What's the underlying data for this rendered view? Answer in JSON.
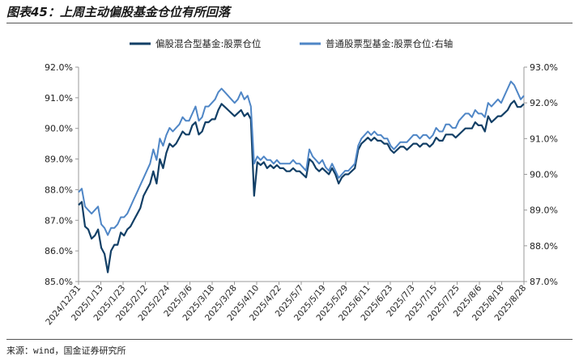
{
  "title": "图表45：上周主动偏股基金仓位有所回落",
  "source": "来源：wind，国金证券研究所",
  "chart_data": {
    "type": "line",
    "legend_position": "top",
    "grid": false,
    "x_tick_labels": [
      "2024/12/31",
      "2025/1/13",
      "2025/1/23",
      "2025/2/12",
      "2025/2/24",
      "2025/3/6",
      "2025/3/18",
      "2025/3/28",
      "2025/4/10",
      "2025/4/22",
      "2025/5/7",
      "2025/5/19",
      "2025/5/29",
      "2025/6/11",
      "2025/6/23",
      "2025/7/3",
      "2025/7/15",
      "2025/7/25",
      "2025/8/6",
      "2025/8/18",
      "2025/8/28"
    ],
    "y_left": {
      "min": 85,
      "max": 92,
      "ticks": [
        "85.0%",
        "86.0%",
        "87.0%",
        "88.0%",
        "89.0%",
        "90.0%",
        "91.0%",
        "92.0%"
      ]
    },
    "y_right": {
      "min": 87,
      "max": 93,
      "ticks": [
        "87.0%",
        "88.0%",
        "89.0%",
        "90.0%",
        "91.0%",
        "92.0%",
        "93.0%"
      ]
    },
    "series": [
      {
        "name": "偏股混合型基金:股票仓位",
        "axis": "left",
        "color": "#123f66",
        "points": [
          [
            0,
            87.5
          ],
          [
            1,
            87.6
          ],
          [
            2,
            86.8
          ],
          [
            3,
            86.7
          ],
          [
            4,
            86.4
          ],
          [
            5,
            86.5
          ],
          [
            6,
            86.7
          ],
          [
            7,
            86.1
          ],
          [
            8,
            85.9
          ],
          [
            9,
            85.3
          ],
          [
            10,
            86.0
          ],
          [
            11,
            86.2
          ],
          [
            12,
            86.2
          ],
          [
            13,
            86.6
          ],
          [
            14,
            86.5
          ],
          [
            15,
            86.7
          ],
          [
            16,
            86.8
          ],
          [
            17,
            87.0
          ],
          [
            18,
            87.2
          ],
          [
            19,
            87.4
          ],
          [
            20,
            87.8
          ],
          [
            21,
            88.0
          ],
          [
            22,
            88.2
          ],
          [
            23,
            88.6
          ],
          [
            24,
            88.2
          ],
          [
            25,
            89.0
          ],
          [
            26,
            88.7
          ],
          [
            27,
            89.2
          ],
          [
            28,
            89.5
          ],
          [
            29,
            89.4
          ],
          [
            30,
            89.5
          ],
          [
            31,
            89.7
          ],
          [
            32,
            89.9
          ],
          [
            33,
            89.8
          ],
          [
            34,
            89.8
          ],
          [
            35,
            90.1
          ],
          [
            36,
            90.2
          ],
          [
            37,
            89.8
          ],
          [
            38,
            89.9
          ],
          [
            39,
            90.2
          ],
          [
            40,
            90.2
          ],
          [
            41,
            90.3
          ],
          [
            42,
            90.3
          ],
          [
            43,
            90.6
          ],
          [
            44,
            90.8
          ],
          [
            45,
            90.7
          ],
          [
            46,
            90.6
          ],
          [
            47,
            90.5
          ],
          [
            48,
            90.4
          ],
          [
            49,
            90.5
          ],
          [
            50,
            90.6
          ],
          [
            51,
            90.4
          ],
          [
            52,
            90.5
          ],
          [
            53,
            90.3
          ],
          [
            54,
            87.8
          ],
          [
            55,
            88.9
          ],
          [
            56,
            88.8
          ],
          [
            57,
            88.9
          ],
          [
            58,
            88.7
          ],
          [
            59,
            88.8
          ],
          [
            60,
            88.7
          ],
          [
            61,
            88.8
          ],
          [
            62,
            88.7
          ],
          [
            63,
            88.7
          ],
          [
            64,
            88.6
          ],
          [
            65,
            88.6
          ],
          [
            66,
            88.7
          ],
          [
            67,
            88.6
          ],
          [
            68,
            88.6
          ],
          [
            69,
            88.5
          ],
          [
            70,
            88.4
          ],
          [
            71,
            89.0
          ],
          [
            72,
            88.9
          ],
          [
            73,
            88.7
          ],
          [
            74,
            88.6
          ],
          [
            75,
            88.7
          ],
          [
            76,
            88.6
          ],
          [
            77,
            88.5
          ],
          [
            78,
            88.7
          ],
          [
            79,
            88.5
          ],
          [
            80,
            88.2
          ],
          [
            81,
            88.4
          ],
          [
            82,
            88.5
          ],
          [
            83,
            88.5
          ],
          [
            84,
            88.6
          ],
          [
            85,
            88.7
          ],
          [
            86,
            89.3
          ],
          [
            87,
            89.5
          ],
          [
            88,
            89.6
          ],
          [
            89,
            89.7
          ],
          [
            90,
            89.6
          ],
          [
            91,
            89.7
          ],
          [
            92,
            89.6
          ],
          [
            93,
            89.6
          ],
          [
            94,
            89.5
          ],
          [
            95,
            89.5
          ],
          [
            96,
            89.3
          ],
          [
            97,
            89.2
          ],
          [
            98,
            89.3
          ],
          [
            99,
            89.4
          ],
          [
            100,
            89.4
          ],
          [
            101,
            89.3
          ],
          [
            102,
            89.4
          ],
          [
            103,
            89.5
          ],
          [
            104,
            89.5
          ],
          [
            105,
            89.4
          ],
          [
            106,
            89.5
          ],
          [
            107,
            89.5
          ],
          [
            108,
            89.4
          ],
          [
            109,
            89.5
          ],
          [
            110,
            89.7
          ],
          [
            111,
            89.6
          ],
          [
            112,
            89.6
          ],
          [
            113,
            89.8
          ],
          [
            114,
            89.8
          ],
          [
            115,
            89.8
          ],
          [
            116,
            89.7
          ],
          [
            117,
            89.8
          ],
          [
            118,
            89.9
          ],
          [
            119,
            90.0
          ],
          [
            120,
            90.0
          ],
          [
            121,
            90.0
          ],
          [
            122,
            90.2
          ],
          [
            123,
            90.1
          ],
          [
            124,
            90.1
          ],
          [
            125,
            89.9
          ],
          [
            126,
            90.4
          ],
          [
            127,
            90.2
          ],
          [
            128,
            90.3
          ],
          [
            129,
            90.4
          ],
          [
            130,
            90.4
          ],
          [
            131,
            90.5
          ],
          [
            132,
            90.6
          ],
          [
            133,
            90.8
          ],
          [
            134,
            90.9
          ],
          [
            135,
            90.7
          ],
          [
            136,
            90.7
          ],
          [
            137,
            90.8
          ]
        ]
      },
      {
        "name": "普通股票型基金:股票仓位:右轴",
        "axis": "right",
        "color": "#4f86c6",
        "points": [
          [
            0,
            89.5
          ],
          [
            1,
            89.6
          ],
          [
            2,
            89.1
          ],
          [
            3,
            89.0
          ],
          [
            4,
            88.9
          ],
          [
            5,
            89.0
          ],
          [
            6,
            89.1
          ],
          [
            7,
            88.6
          ],
          [
            8,
            88.5
          ],
          [
            9,
            88.3
          ],
          [
            10,
            88.5
          ],
          [
            11,
            88.5
          ],
          [
            12,
            88.6
          ],
          [
            13,
            88.8
          ],
          [
            14,
            88.8
          ],
          [
            15,
            88.9
          ],
          [
            16,
            89.1
          ],
          [
            17,
            89.3
          ],
          [
            18,
            89.5
          ],
          [
            19,
            89.7
          ],
          [
            20,
            89.9
          ],
          [
            21,
            90.1
          ],
          [
            22,
            90.3
          ],
          [
            23,
            90.7
          ],
          [
            24,
            90.4
          ],
          [
            25,
            91.0
          ],
          [
            26,
            90.8
          ],
          [
            27,
            91.1
          ],
          [
            28,
            91.3
          ],
          [
            29,
            91.2
          ],
          [
            30,
            91.3
          ],
          [
            31,
            91.4
          ],
          [
            32,
            91.6
          ],
          [
            33,
            91.5
          ],
          [
            34,
            91.5
          ],
          [
            35,
            91.7
          ],
          [
            36,
            91.9
          ],
          [
            37,
            91.5
          ],
          [
            38,
            91.6
          ],
          [
            39,
            91.9
          ],
          [
            40,
            91.9
          ],
          [
            41,
            92.0
          ],
          [
            42,
            92.1
          ],
          [
            43,
            92.3
          ],
          [
            44,
            92.4
          ],
          [
            45,
            92.3
          ],
          [
            46,
            92.2
          ],
          [
            47,
            92.1
          ],
          [
            48,
            92.0
          ],
          [
            49,
            92.1
          ],
          [
            50,
            92.3
          ],
          [
            51,
            92.1
          ],
          [
            52,
            92.2
          ],
          [
            53,
            91.9
          ],
          [
            54,
            90.3
          ],
          [
            55,
            90.5
          ],
          [
            56,
            90.4
          ],
          [
            57,
            90.5
          ],
          [
            58,
            90.4
          ],
          [
            59,
            90.4
          ],
          [
            60,
            90.3
          ],
          [
            61,
            90.4
          ],
          [
            62,
            90.3
          ],
          [
            63,
            90.3
          ],
          [
            64,
            90.3
          ],
          [
            65,
            90.3
          ],
          [
            66,
            90.4
          ],
          [
            67,
            90.3
          ],
          [
            68,
            90.3
          ],
          [
            69,
            90.2
          ],
          [
            70,
            90.1
          ],
          [
            71,
            90.7
          ],
          [
            72,
            90.5
          ],
          [
            73,
            90.4
          ],
          [
            74,
            90.3
          ],
          [
            75,
            90.4
          ],
          [
            76,
            90.2
          ],
          [
            77,
            90.1
          ],
          [
            78,
            90.3
          ],
          [
            79,
            90.1
          ],
          [
            80,
            89.9
          ],
          [
            81,
            90.0
          ],
          [
            82,
            90.1
          ],
          [
            83,
            90.1
          ],
          [
            84,
            90.2
          ],
          [
            85,
            90.3
          ],
          [
            86,
            90.8
          ],
          [
            87,
            91.0
          ],
          [
            88,
            91.1
          ],
          [
            89,
            91.2
          ],
          [
            90,
            91.1
          ],
          [
            91,
            91.2
          ],
          [
            92,
            91.1
          ],
          [
            93,
            91.1
          ],
          [
            94,
            91.0
          ],
          [
            95,
            91.0
          ],
          [
            96,
            90.8
          ],
          [
            97,
            90.7
          ],
          [
            98,
            90.8
          ],
          [
            99,
            90.9
          ],
          [
            100,
            90.9
          ],
          [
            101,
            90.9
          ],
          [
            102,
            91.0
          ],
          [
            103,
            91.1
          ],
          [
            104,
            91.1
          ],
          [
            105,
            91.0
          ],
          [
            106,
            91.1
          ],
          [
            107,
            91.1
          ],
          [
            108,
            91.0
          ],
          [
            109,
            91.1
          ],
          [
            110,
            91.3
          ],
          [
            111,
            91.2
          ],
          [
            112,
            91.2
          ],
          [
            113,
            91.4
          ],
          [
            114,
            91.4
          ],
          [
            115,
            91.3
          ],
          [
            116,
            91.3
          ],
          [
            117,
            91.5
          ],
          [
            118,
            91.6
          ],
          [
            119,
            91.7
          ],
          [
            120,
            91.7
          ],
          [
            121,
            91.6
          ],
          [
            122,
            91.8
          ],
          [
            123,
            91.7
          ],
          [
            124,
            91.7
          ],
          [
            125,
            91.6
          ],
          [
            126,
            92.0
          ],
          [
            127,
            91.9
          ],
          [
            128,
            92.0
          ],
          [
            129,
            92.1
          ],
          [
            130,
            92.0
          ],
          [
            131,
            92.2
          ],
          [
            132,
            92.4
          ],
          [
            133,
            92.6
          ],
          [
            134,
            92.5
          ],
          [
            135,
            92.3
          ],
          [
            136,
            92.1
          ],
          [
            137,
            92.2
          ]
        ]
      }
    ]
  }
}
